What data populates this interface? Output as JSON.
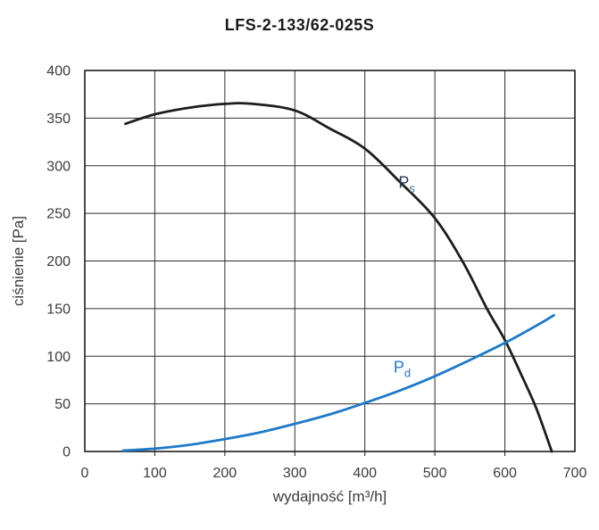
{
  "chart_data": {
    "type": "line",
    "title": "LFS-2-133/62-025S",
    "xlabel": "wydajność [m³/h]",
    "ylabel": "ciśnienie [Pa]",
    "xlim": [
      0,
      700
    ],
    "ylim": [
      0,
      400
    ],
    "xticks": [
      0,
      100,
      200,
      300,
      400,
      500,
      600,
      700
    ],
    "yticks": [
      0,
      50,
      100,
      150,
      200,
      250,
      300,
      350,
      400
    ],
    "grid": true,
    "legend_position": "inline-labels",
    "series": [
      {
        "name": "Ps",
        "label_main": "P",
        "label_sub": "s",
        "label_pos": {
          "x": 448,
          "y": 277
        },
        "color": "#1d1d1b",
        "points": [
          [
            58,
            344
          ],
          [
            100,
            354
          ],
          [
            150,
            361
          ],
          [
            200,
            365
          ],
          [
            240,
            365
          ],
          [
            300,
            358
          ],
          [
            350,
            339
          ],
          [
            400,
            318
          ],
          [
            450,
            283
          ],
          [
            500,
            245
          ],
          [
            540,
            199
          ],
          [
            575,
            149
          ],
          [
            600,
            117
          ],
          [
            625,
            78
          ],
          [
            645,
            45
          ],
          [
            667,
            0
          ]
        ]
      },
      {
        "name": "Pd",
        "label_main": "P",
        "label_sub": "d",
        "label_pos": {
          "x": 441,
          "y": 83
        },
        "color": "#1e79c8",
        "points": [
          [
            55,
            1
          ],
          [
            100,
            3
          ],
          [
            150,
            7
          ],
          [
            200,
            13
          ],
          [
            250,
            20
          ],
          [
            300,
            29
          ],
          [
            350,
            39
          ],
          [
            400,
            51
          ],
          [
            450,
            64
          ],
          [
            500,
            79
          ],
          [
            550,
            96
          ],
          [
            600,
            114
          ],
          [
            640,
            130
          ],
          [
            670,
            143
          ]
        ]
      }
    ],
    "colors": {
      "grid": "#2e2e2e",
      "frame": "#1d1d1b",
      "tick_text": "#3c3c3c",
      "axis_text": "#3c3c3c",
      "title_text": "#1a1a1a",
      "ps_label": "#2b3c52",
      "ps_sub": "#4d7396",
      "pd_label": "#1e79c8"
    }
  }
}
